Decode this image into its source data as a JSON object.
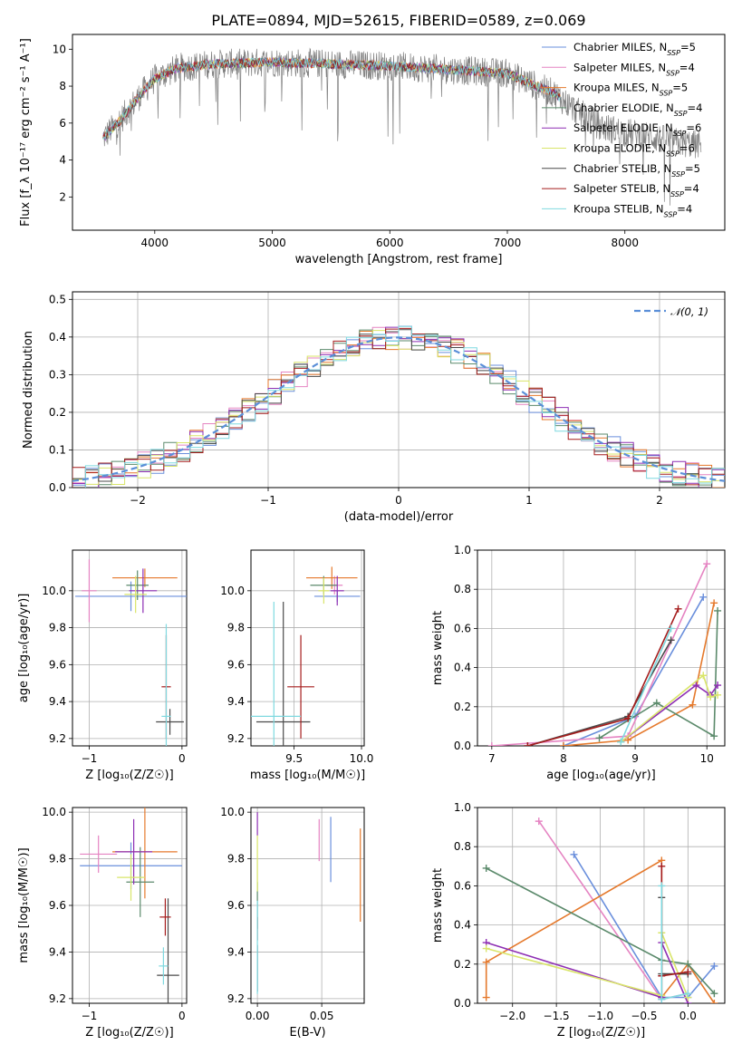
{
  "figure": {
    "title": "PLATE=0894, MJD=52615, FIBERID=0589, z=0.069"
  },
  "colors": {
    "data": "#808080",
    "Chabrier MILES": "#6a8fdc",
    "Salpeter MILES": "#e584c2",
    "Kroupa MILES": "#e5792c",
    "Chabrier ELODIE": "#5b8a6b",
    "Salpeter ELODIE": "#8e2fb4",
    "Kroupa ELODIE": "#d9e56a",
    "Chabrier STELIB": "#4a4a4a",
    "Salpeter STELIB": "#a51c1c",
    "Kroupa STELIB": "#7fd9e0",
    "gaussian": "#5b8fd8"
  },
  "chart_data": [
    {
      "id": "spectrum",
      "type": "line",
      "xlabel": "wavelength [Angstrom, rest frame]",
      "ylabel": "Flux [f_λ 10⁻¹⁷ erg cm⁻² s⁻¹ A⁻¹]",
      "xlim": [
        3300,
        8850
      ],
      "ylim": [
        0.2,
        10.8
      ],
      "xticks": [
        "4000",
        "5000",
        "6000",
        "7000",
        "8000"
      ],
      "yticks": [
        "2",
        "4",
        "6",
        "8",
        "10"
      ],
      "legend": [
        "Chabrier MILES, N_SSP=5",
        "Salpeter MILES, N_SSP=4",
        "Kroupa MILES, N_SSP=5",
        "Chabrier ELODIE, N_SSP=4",
        "Salpeter ELODIE, N_SSP=6",
        "Kroupa ELODIE, N_SSP=6",
        "Chabrier STELIB, N_SSP=5",
        "Salpeter STELIB, N_SSP=4",
        "Kroupa STELIB, N_SSP=4"
      ],
      "legend_parts": [
        {
          "name": "Chabrier MILES",
          "n": "5"
        },
        {
          "name": "Salpeter MILES",
          "n": "4"
        },
        {
          "name": "Kroupa MILES",
          "n": "5"
        },
        {
          "name": "Chabrier ELODIE",
          "n": "4"
        },
        {
          "name": "Salpeter ELODIE",
          "n": "6"
        },
        {
          "name": "Kroupa ELODIE",
          "n": "6"
        },
        {
          "name": "Chabrier STELIB",
          "n": "5"
        },
        {
          "name": "Salpeter STELIB",
          "n": "4"
        },
        {
          "name": "Kroupa STELIB",
          "n": "4"
        }
      ],
      "continuum": [
        [
          3560,
          5.2
        ],
        [
          3700,
          6.1
        ],
        [
          3900,
          7.7
        ],
        [
          4000,
          8.4
        ],
        [
          4200,
          9.0
        ],
        [
          4500,
          9.2
        ],
        [
          5000,
          9.3
        ],
        [
          5500,
          9.2
        ],
        [
          6000,
          9.1
        ],
        [
          6500,
          8.9
        ],
        [
          7000,
          8.7
        ],
        [
          7400,
          7.6
        ],
        [
          7600,
          6.6
        ],
        [
          7800,
          5.8
        ],
        [
          8000,
          5.5
        ],
        [
          8200,
          5.3
        ],
        [
          8400,
          5.0
        ],
        [
          8650,
          4.8
        ]
      ],
      "legend_position": "top-right"
    },
    {
      "id": "residuals",
      "type": "histogram",
      "xlabel": "(data-model)/error",
      "ylabel": "Normed distribution",
      "xlim": [
        -2.5,
        2.5
      ],
      "ylim": [
        0,
        0.52
      ],
      "xticks": [
        "−2",
        "−1",
        "0",
        "1",
        "2"
      ],
      "yticks": [
        "0.0",
        "0.1",
        "0.2",
        "0.3",
        "0.4",
        "0.5"
      ],
      "legend": [
        "𝒩(0, 1)"
      ],
      "legend_position": "top-right",
      "bin_edges_from": -2.5,
      "bin_width": 0.1
    },
    {
      "id": "age-vs-Z",
      "type": "errorbar",
      "xlabel": "Z [log₁₀(Z/Z☉)]",
      "ylabel": "age  [log₁₀(age/yr)]",
      "xlim": [
        -1.18,
        0.05
      ],
      "ylim": [
        9.16,
        10.22
      ],
      "xticks": [
        "−1",
        "0"
      ],
      "yticks": [
        "9.2",
        "9.4",
        "9.6",
        "9.8",
        "10.0"
      ],
      "points": [
        {
          "model": "Chabrier MILES",
          "x": -0.55,
          "y": 9.97,
          "xerr": 0.6,
          "yerr": 0.08
        },
        {
          "model": "Salpeter MILES",
          "x": -1.0,
          "y": 10.0,
          "xerr": 0.08,
          "yerr": 0.17
        },
        {
          "model": "Kroupa MILES",
          "x": -0.4,
          "y": 10.07,
          "xerr": 0.35,
          "yerr": 0.05
        },
        {
          "model": "Chabrier ELODIE",
          "x": -0.48,
          "y": 10.03,
          "xerr": 0.12,
          "yerr": 0.08
        },
        {
          "model": "Salpeter ELODIE",
          "x": -0.42,
          "y": 10.0,
          "xerr": 0.15,
          "yerr": 0.12
        },
        {
          "model": "Kroupa ELODIE",
          "x": -0.5,
          "y": 9.98,
          "xerr": 0.12,
          "yerr": 0.1
        },
        {
          "model": "Chabrier STELIB",
          "x": -0.13,
          "y": 9.29,
          "xerr": 0.15,
          "yerr": 0.07
        },
        {
          "model": "Salpeter STELIB",
          "x": -0.17,
          "y": 9.48,
          "xerr": 0.05,
          "yerr": 0.28
        },
        {
          "model": "Kroupa STELIB",
          "x": -0.17,
          "y": 9.32,
          "xerr": 0.05,
          "yerr": 0.5
        }
      ]
    },
    {
      "id": "age-vs-mass",
      "type": "errorbar",
      "xlabel": "mass [log₁₀(M/M☉)]",
      "ylabel": "",
      "xlim": [
        9.18,
        10.02
      ],
      "ylim": [
        9.16,
        10.22
      ],
      "xticks": [
        "9.5",
        "10.0"
      ],
      "yticks": [
        "9.2",
        "9.4",
        "9.6",
        "9.8",
        "10.0"
      ],
      "points": [
        {
          "model": "Chabrier MILES",
          "x": 9.82,
          "y": 9.97,
          "xerr": 0.17,
          "yerr": 0.03
        },
        {
          "model": "Salpeter MILES",
          "x": 9.8,
          "y": 10.03,
          "xerr": 0.06,
          "yerr": 0.05
        },
        {
          "model": "Kroupa MILES",
          "x": 9.78,
          "y": 10.07,
          "xerr": 0.19,
          "yerr": 0.06
        },
        {
          "model": "Chabrier ELODIE",
          "x": 9.72,
          "y": 10.03,
          "xerr": 0.1,
          "yerr": 0.05
        },
        {
          "model": "Salpeter ELODIE",
          "x": 9.82,
          "y": 10.0,
          "xerr": 0.05,
          "yerr": 0.08
        },
        {
          "model": "Kroupa ELODIE",
          "x": 9.72,
          "y": 10.0,
          "xerr": 0.04,
          "yerr": 0.07
        },
        {
          "model": "Chabrier STELIB",
          "x": 9.42,
          "y": 9.29,
          "xerr": 0.2,
          "yerr": 0.65
        },
        {
          "model": "Salpeter STELIB",
          "x": 9.55,
          "y": 9.48,
          "xerr": 0.1,
          "yerr": 0.28
        },
        {
          "model": "Kroupa STELIB",
          "x": 9.35,
          "y": 9.32,
          "xerr": 0.2,
          "yerr": 0.62
        }
      ]
    },
    {
      "id": "weight-vs-age",
      "type": "line",
      "xlabel": "age  [log₁₀(age/yr)]",
      "ylabel": "mass weight",
      "xlim": [
        6.8,
        10.25
      ],
      "ylim": [
        0,
        1.0
      ],
      "xticks": [
        "7",
        "8",
        "9",
        "10"
      ],
      "yticks": [
        "0.0",
        "0.2",
        "0.4",
        "0.6",
        "0.8",
        "1.0"
      ],
      "series": [
        {
          "name": "Chabrier MILES",
          "x": [
            8.0,
            9.0,
            9.95
          ],
          "y": [
            0.0,
            0.15,
            0.76
          ]
        },
        {
          "name": "Salpeter MILES",
          "x": [
            7.0,
            8.9,
            10.0
          ],
          "y": [
            0.0,
            0.05,
            0.93
          ]
        },
        {
          "name": "Kroupa MILES",
          "x": [
            8.0,
            8.9,
            9.8,
            10.1
          ],
          "y": [
            0.0,
            0.03,
            0.21,
            0.73
          ]
        },
        {
          "name": "Chabrier ELODIE",
          "x": [
            8.5,
            9.3,
            10.1,
            10.15
          ],
          "y": [
            0.04,
            0.22,
            0.05,
            0.69
          ]
        },
        {
          "name": "Salpeter ELODIE",
          "x": [
            8.8,
            9.85,
            10.05,
            10.15
          ],
          "y": [
            0.02,
            0.31,
            0.26,
            0.31
          ]
        },
        {
          "name": "Kroupa ELODIE",
          "x": [
            8.8,
            9.95,
            10.05,
            10.15
          ],
          "y": [
            0.02,
            0.36,
            0.25,
            0.26
          ]
        },
        {
          "name": "Chabrier STELIB",
          "x": [
            7.5,
            8.9,
            9.5
          ],
          "y": [
            0.0,
            0.15,
            0.54
          ]
        },
        {
          "name": "Salpeter STELIB",
          "x": [
            7.5,
            8.9,
            9.6
          ],
          "y": [
            0.0,
            0.14,
            0.7
          ]
        },
        {
          "name": "Kroupa STELIB",
          "x": [
            8.8,
            9.5
          ],
          "y": [
            0.02,
            0.6
          ]
        }
      ]
    },
    {
      "id": "mass-vs-Z",
      "type": "errorbar",
      "xlabel": "Z [log₁₀(Z/Z☉)]",
      "ylabel": "mass [log₁₀(M/M☉)]",
      "xlim": [
        -1.18,
        0.05
      ],
      "ylim": [
        9.18,
        10.02
      ],
      "xticks": [
        "−1",
        "0"
      ],
      "yticks": [
        "9.2",
        "9.4",
        "9.6",
        "9.8",
        "10.0"
      ],
      "points": [
        {
          "model": "Chabrier MILES",
          "x": -0.55,
          "y": 9.77,
          "xerr": 0.55,
          "yerr": 0.1
        },
        {
          "model": "Salpeter MILES",
          "x": -0.9,
          "y": 9.82,
          "xerr": 0.2,
          "yerr": 0.08
        },
        {
          "model": "Kroupa MILES",
          "x": -0.4,
          "y": 9.83,
          "xerr": 0.35,
          "yerr": 0.2
        },
        {
          "model": "Chabrier ELODIE",
          "x": -0.45,
          "y": 9.7,
          "xerr": 0.15,
          "yerr": 0.15
        },
        {
          "model": "Salpeter ELODIE",
          "x": -0.52,
          "y": 9.83,
          "xerr": 0.2,
          "yerr": 0.14
        },
        {
          "model": "Kroupa ELODIE",
          "x": -0.55,
          "y": 9.72,
          "xerr": 0.15,
          "yerr": 0.1
        },
        {
          "model": "Chabrier STELIB",
          "x": -0.15,
          "y": 9.3,
          "xerr": 0.12,
          "yerr": 0.33
        },
        {
          "model": "Salpeter STELIB",
          "x": -0.18,
          "y": 9.55,
          "xerr": 0.06,
          "yerr": 0.08
        },
        {
          "model": "Kroupa STELIB",
          "x": -0.2,
          "y": 9.34,
          "xerr": 0.05,
          "yerr": 0.08
        }
      ]
    },
    {
      "id": "mass-vs-ebv",
      "type": "errorbar",
      "xlabel": "E(B-V)",
      "ylabel": "",
      "xlim": [
        -0.005,
        0.083
      ],
      "ylim": [
        9.18,
        10.02
      ],
      "xticks": [
        "0.00",
        "0.05"
      ],
      "yticks": [
        "9.2",
        "9.4",
        "9.6",
        "9.8",
        "10.0"
      ],
      "points": [
        {
          "model": "Chabrier MILES",
          "x": 0.057,
          "y": 9.84,
          "yerr": 0.14
        },
        {
          "model": "Salpeter MILES",
          "x": 0.048,
          "y": 9.88,
          "yerr": 0.09
        },
        {
          "model": "Kroupa MILES",
          "x": 0.08,
          "y": 9.73,
          "yerr": 0.2
        },
        {
          "model": "Chabrier ELODIE",
          "x": 0.0,
          "y": 9.6,
          "yerr": 0.1
        },
        {
          "model": "Salpeter ELODIE",
          "x": 0.0,
          "y": 9.95,
          "yerr": 0.05
        },
        {
          "model": "Kroupa ELODIE",
          "x": 0.0,
          "y": 9.78,
          "yerr": 0.12
        },
        {
          "model": "Chabrier STELIB",
          "x": 0.0,
          "y": 9.33,
          "yerr": 0.1
        },
        {
          "model": "Salpeter STELIB",
          "x": 0.0,
          "y": 9.5,
          "yerr": 0.05
        },
        {
          "model": "Kroupa STELIB",
          "x": 0.0,
          "y": 9.42,
          "yerr": 0.2
        }
      ]
    },
    {
      "id": "weight-vs-Z",
      "type": "line",
      "xlabel": "Z [log₁₀(Z/Z☉)]",
      "ylabel": "mass weight",
      "xlim": [
        -2.4,
        0.42
      ],
      "ylim": [
        0,
        1.0
      ],
      "xticks": [
        "−2.0",
        "−1.5",
        "−1.0",
        "−0.5",
        "0.0"
      ],
      "yticks": [
        "0.0",
        "0.2",
        "0.4",
        "0.6",
        "0.8",
        "1.0"
      ],
      "series": [
        {
          "name": "Chabrier MILES",
          "x": [
            -1.3,
            -0.3,
            0.0,
            0.3
          ],
          "y": [
            0.76,
            0.03,
            0.03,
            0.19
          ]
        },
        {
          "name": "Salpeter MILES",
          "x": [
            -1.7,
            -0.3,
            0.0
          ],
          "y": [
            0.93,
            0.02,
            0.05
          ]
        },
        {
          "name": "Kroupa MILES",
          "x": [
            -2.3,
            -2.3,
            -0.3,
            -0.3,
            0.0,
            0.3
          ],
          "y": [
            0.03,
            0.21,
            0.73,
            0.03,
            0.2,
            0.0
          ]
        },
        {
          "name": "Chabrier ELODIE",
          "x": [
            -2.3,
            -0.3,
            0.0,
            0.3
          ],
          "y": [
            0.69,
            0.22,
            0.2,
            0.05
          ]
        },
        {
          "name": "Salpeter ELODIE",
          "x": [
            -2.3,
            -0.3,
            -0.3,
            0.0
          ],
          "y": [
            0.31,
            0.03,
            0.31,
            0.0
          ]
        },
        {
          "name": "Kroupa ELODIE",
          "x": [
            -2.3,
            -0.3,
            -0.3,
            0.0
          ],
          "y": [
            0.28,
            0.04,
            0.36,
            0.03
          ]
        },
        {
          "name": "Chabrier STELIB",
          "x": [
            -0.3,
            -0.3,
            0.0
          ],
          "y": [
            0.54,
            0.15,
            0.15
          ]
        },
        {
          "name": "Salpeter STELIB",
          "x": [
            -0.3,
            -0.3,
            0.0
          ],
          "y": [
            0.7,
            0.14,
            0.16
          ]
        },
        {
          "name": "Kroupa STELIB",
          "x": [
            -0.3,
            -0.3,
            0.0
          ],
          "y": [
            0.6,
            0.02,
            0.05
          ]
        }
      ]
    }
  ]
}
